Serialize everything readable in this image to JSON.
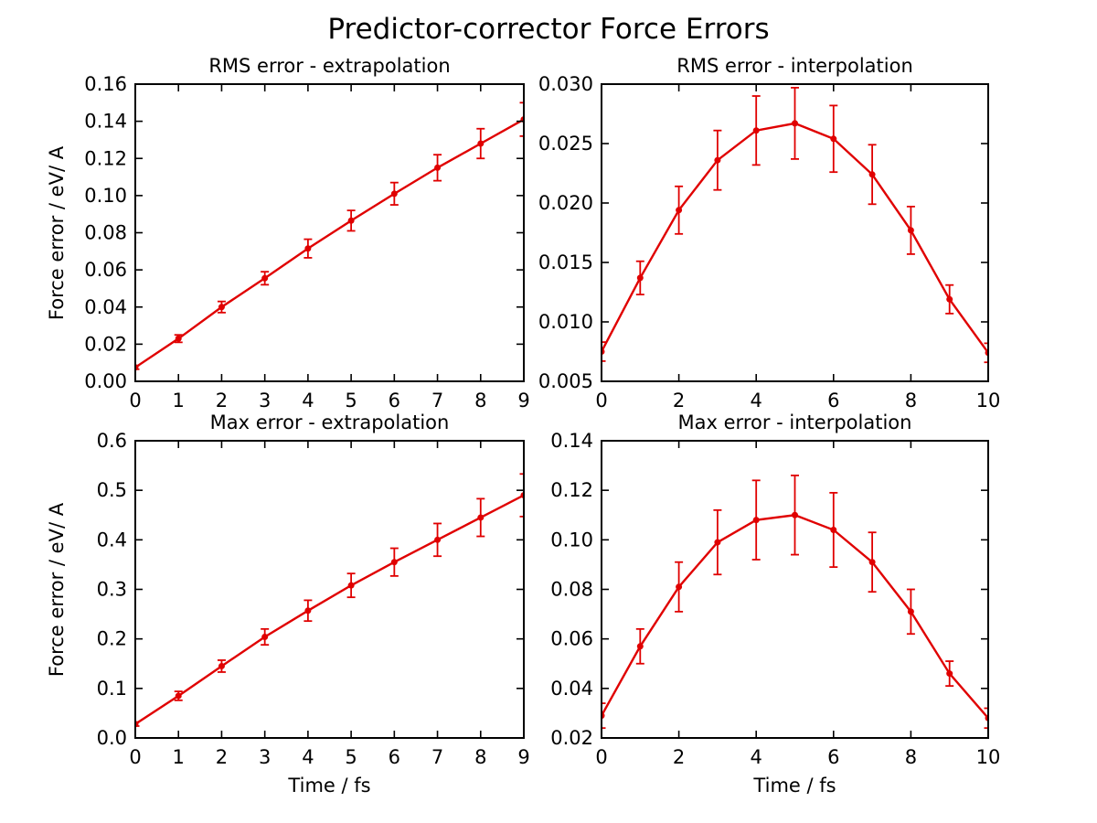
{
  "figure": {
    "title": "Predictor-corrector Force Errors",
    "background_color": "#ffffff",
    "axis_color": "#000000",
    "series_color": "#e00000"
  },
  "chart_data": [
    {
      "type": "line",
      "title": "RMS error - extrapolation",
      "xlabel": "",
      "ylabel": "Force error / eV/ A",
      "grid": false,
      "legend": "none",
      "marker": "circle",
      "error_bars": true,
      "xlim": [
        0,
        9
      ],
      "ylim": [
        0.0,
        0.16
      ],
      "x": [
        0,
        1,
        2,
        3,
        4,
        5,
        6,
        7,
        8,
        9
      ],
      "y": [
        0.0075,
        0.023,
        0.04,
        0.0555,
        0.0715,
        0.0865,
        0.101,
        0.115,
        0.128,
        0.141
      ],
      "yerr": [
        0.001,
        0.002,
        0.003,
        0.0035,
        0.005,
        0.0055,
        0.006,
        0.007,
        0.008,
        0.009
      ],
      "xticks": {
        "positions": [
          0,
          1,
          2,
          3,
          4,
          5,
          6,
          7,
          8,
          9
        ],
        "labels": [
          "0",
          "1",
          "2",
          "3",
          "4",
          "5",
          "6",
          "7",
          "8",
          "9"
        ]
      },
      "yticks": {
        "positions": [
          0.0,
          0.02,
          0.04,
          0.06,
          0.08,
          0.1,
          0.12,
          0.14,
          0.16
        ],
        "labels": [
          "0.00",
          "0.02",
          "0.04",
          "0.06",
          "0.08",
          "0.10",
          "0.12",
          "0.14",
          "0.16"
        ]
      }
    },
    {
      "type": "line",
      "title": "RMS error - interpolation",
      "xlabel": "",
      "ylabel": "",
      "grid": false,
      "legend": "none",
      "marker": "circle",
      "error_bars": true,
      "xlim": [
        0,
        10
      ],
      "ylim": [
        0.005,
        0.03
      ],
      "x": [
        0,
        1,
        2,
        3,
        4,
        5,
        6,
        7,
        8,
        9,
        10
      ],
      "y": [
        0.0075,
        0.0137,
        0.0194,
        0.0236,
        0.0261,
        0.0267,
        0.0254,
        0.0224,
        0.0177,
        0.0119,
        0.0074
      ],
      "yerr": [
        0.0008,
        0.0014,
        0.002,
        0.0025,
        0.0029,
        0.003,
        0.0028,
        0.0025,
        0.002,
        0.0012,
        0.0008
      ],
      "xticks": {
        "positions": [
          0,
          2,
          4,
          6,
          8,
          10
        ],
        "labels": [
          "0",
          "2",
          "4",
          "6",
          "8",
          "10"
        ]
      },
      "yticks": {
        "positions": [
          0.005,
          0.01,
          0.015,
          0.02,
          0.025,
          0.03
        ],
        "labels": [
          "0.005",
          "0.010",
          "0.015",
          "0.020",
          "0.025",
          "0.030"
        ]
      }
    },
    {
      "type": "line",
      "title": "Max error - extrapolation",
      "xlabel": "Time / fs",
      "ylabel": "Force error / eV/ A",
      "grid": false,
      "legend": "none",
      "marker": "circle",
      "error_bars": true,
      "xlim": [
        0,
        9
      ],
      "ylim": [
        0.0,
        0.6
      ],
      "x": [
        0,
        1,
        2,
        3,
        4,
        5,
        6,
        7,
        8,
        9
      ],
      "y": [
        0.028,
        0.085,
        0.145,
        0.204,
        0.257,
        0.308,
        0.355,
        0.4,
        0.445,
        0.49
      ],
      "yerr": [
        0.004,
        0.009,
        0.012,
        0.016,
        0.021,
        0.024,
        0.028,
        0.033,
        0.038,
        0.043
      ],
      "xticks": {
        "positions": [
          0,
          1,
          2,
          3,
          4,
          5,
          6,
          7,
          8,
          9
        ],
        "labels": [
          "0",
          "1",
          "2",
          "3",
          "4",
          "5",
          "6",
          "7",
          "8",
          "9"
        ]
      },
      "yticks": {
        "positions": [
          0.0,
          0.1,
          0.2,
          0.3,
          0.4,
          0.5,
          0.6
        ],
        "labels": [
          "0.0",
          "0.1",
          "0.2",
          "0.3",
          "0.4",
          "0.5",
          "0.6"
        ]
      }
    },
    {
      "type": "line",
      "title": "Max error - interpolation",
      "xlabel": "Time / fs",
      "ylabel": "",
      "grid": false,
      "legend": "none",
      "marker": "circle",
      "error_bars": true,
      "xlim": [
        0,
        10
      ],
      "ylim": [
        0.02,
        0.14
      ],
      "x": [
        0,
        1,
        2,
        3,
        4,
        5,
        6,
        7,
        8,
        9,
        10
      ],
      "y": [
        0.029,
        0.057,
        0.081,
        0.099,
        0.108,
        0.11,
        0.104,
        0.091,
        0.071,
        0.046,
        0.028
      ],
      "yerr": [
        0.005,
        0.007,
        0.01,
        0.013,
        0.016,
        0.016,
        0.015,
        0.012,
        0.009,
        0.005,
        0.004
      ],
      "xticks": {
        "positions": [
          0,
          2,
          4,
          6,
          8,
          10
        ],
        "labels": [
          "0",
          "2",
          "4",
          "6",
          "8",
          "10"
        ]
      },
      "yticks": {
        "positions": [
          0.02,
          0.04,
          0.06,
          0.08,
          0.1,
          0.12,
          0.14
        ],
        "labels": [
          "0.02",
          "0.04",
          "0.06",
          "0.08",
          "0.10",
          "0.12",
          "0.14"
        ]
      }
    }
  ]
}
